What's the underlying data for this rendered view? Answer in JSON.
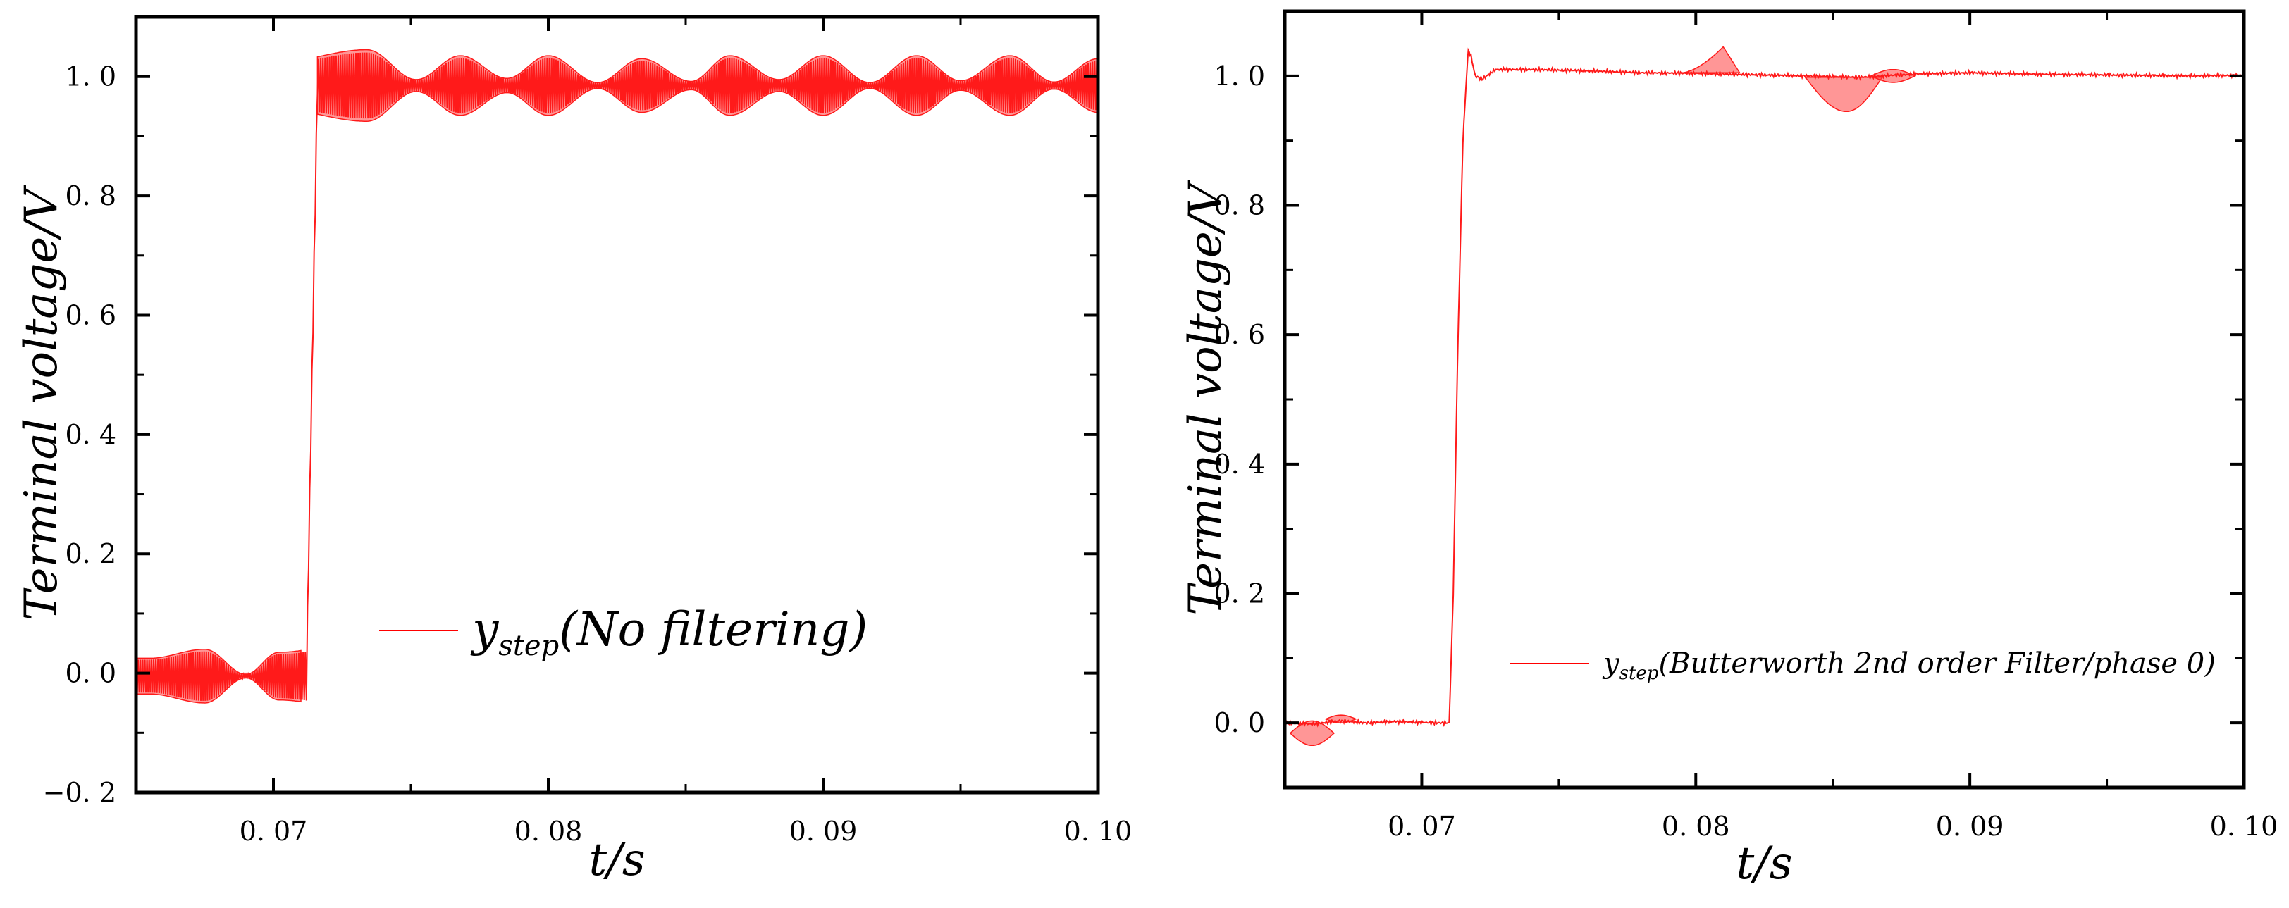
{
  "chart_data": [
    {
      "type": "line",
      "panel": "left",
      "xlabel": "t/s",
      "ylabel": "Terminal voltage/V",
      "xlim": [
        0.065,
        0.1
      ],
      "ylim": [
        -0.2,
        1.1
      ],
      "x_ticks": [
        0.07,
        0.08,
        0.09,
        0.1
      ],
      "x_tick_labels": [
        "0. 07",
        "0. 08",
        "0. 09",
        "0. 10"
      ],
      "y_ticks": [
        -0.2,
        0.0,
        0.2,
        0.4,
        0.6,
        0.8,
        1.0
      ],
      "y_tick_labels": [
        "−0. 2",
        "0. 0",
        "0. 2",
        "0. 4",
        "0. 6",
        "0. 8",
        "1. 0"
      ],
      "legend": {
        "main": "y",
        "sub": "step",
        "suffix": "(No filtering)",
        "placement": "center"
      },
      "color": "#ff0000",
      "series": {
        "name": "y_step (No filtering)",
        "step_time": 0.0712,
        "before_level": -0.005,
        "after_level": 0.985,
        "ripple_envelope": [
          {
            "x": 0.0655,
            "half_width": 0.03
          },
          {
            "x": 0.0675,
            "half_width": 0.045
          },
          {
            "x": 0.069,
            "half_width": 0.003
          },
          {
            "x": 0.0702,
            "half_width": 0.04
          },
          {
            "x": 0.0734,
            "half_width": 0.06
          },
          {
            "x": 0.0752,
            "half_width": 0.01
          },
          {
            "x": 0.0768,
            "half_width": 0.05
          },
          {
            "x": 0.0785,
            "half_width": 0.012
          },
          {
            "x": 0.08,
            "half_width": 0.05
          },
          {
            "x": 0.0818,
            "half_width": 0.005
          },
          {
            "x": 0.0834,
            "half_width": 0.045
          },
          {
            "x": 0.0852,
            "half_width": 0.007
          },
          {
            "x": 0.0866,
            "half_width": 0.05
          },
          {
            "x": 0.0884,
            "half_width": 0.01
          },
          {
            "x": 0.09,
            "half_width": 0.05
          },
          {
            "x": 0.0917,
            "half_width": 0.005
          },
          {
            "x": 0.0934,
            "half_width": 0.05
          },
          {
            "x": 0.095,
            "half_width": 0.008
          },
          {
            "x": 0.0968,
            "half_width": 0.05
          },
          {
            "x": 0.0984,
            "half_width": 0.006
          },
          {
            "x": 0.1,
            "half_width": 0.045
          }
        ]
      }
    },
    {
      "type": "line",
      "panel": "right",
      "xlabel": "t/s",
      "ylabel": "Terminal voltage/V",
      "xlim": [
        0.065,
        0.1
      ],
      "ylim": [
        -0.1,
        1.1
      ],
      "x_ticks": [
        0.07,
        0.08,
        0.09,
        0.1
      ],
      "x_tick_labels": [
        "0. 07",
        "0. 08",
        "0. 09",
        "0. 10"
      ],
      "y_ticks": [
        0.0,
        0.2,
        0.4,
        0.6,
        0.8,
        1.0
      ],
      "y_tick_labels": [
        "0. 0",
        "0. 2",
        "0. 4",
        "0. 6",
        "0. 8",
        "1. 0"
      ],
      "legend": {
        "main": "y",
        "sub": "step",
        "suffix": "(Butterworth 2nd order Filter/phase 0)",
        "placement": "center-right"
      },
      "color": "#ff0000",
      "series": {
        "name": "y_step (Butterworth 2nd order Filter/phase 0)",
        "points": [
          [
            0.065,
            0.0
          ],
          [
            0.066,
            -0.002
          ],
          [
            0.067,
            0.003
          ],
          [
            0.068,
            0.0
          ],
          [
            0.069,
            0.002
          ],
          [
            0.0705,
            0.0
          ],
          [
            0.071,
            0.0
          ],
          [
            0.07115,
            0.2
          ],
          [
            0.0713,
            0.55
          ],
          [
            0.0715,
            0.9
          ],
          [
            0.07165,
            1.01
          ],
          [
            0.0717,
            1.04
          ],
          [
            0.0718,
            1.03
          ],
          [
            0.07195,
            1.0
          ],
          [
            0.0722,
            0.995
          ],
          [
            0.0727,
            1.01
          ],
          [
            0.074,
            1.01
          ],
          [
            0.076,
            1.008
          ],
          [
            0.078,
            1.005
          ],
          [
            0.08,
            1.004
          ],
          [
            0.082,
            1.002
          ],
          [
            0.084,
            1.0
          ],
          [
            0.086,
            0.998
          ],
          [
            0.088,
            1.003
          ],
          [
            0.09,
            1.005
          ],
          [
            0.092,
            1.003
          ],
          [
            0.094,
            1.002
          ],
          [
            0.096,
            1.001
          ],
          [
            0.098,
            1.0
          ],
          [
            0.1,
            1.001
          ]
        ],
        "bursts": [
          {
            "x0": 0.0652,
            "x1": 0.0668,
            "top": 0.003,
            "bottom": -0.035
          },
          {
            "x0": 0.0665,
            "x1": 0.0676,
            "top": 0.012,
            "bottom": 0.0
          },
          {
            "x0": 0.0795,
            "x1": 0.0816,
            "top": 1.005,
            "bottom": 1.005,
            "peak": 1.045,
            "peak_x": 0.081
          },
          {
            "x0": 0.084,
            "x1": 0.0868,
            "top": 0.998,
            "bottom": 0.998,
            "trough": 0.945,
            "trough_x": 0.0855
          },
          {
            "x0": 0.0864,
            "x1": 0.088,
            "top": 1.01,
            "bottom": 0.99
          }
        ]
      }
    }
  ]
}
